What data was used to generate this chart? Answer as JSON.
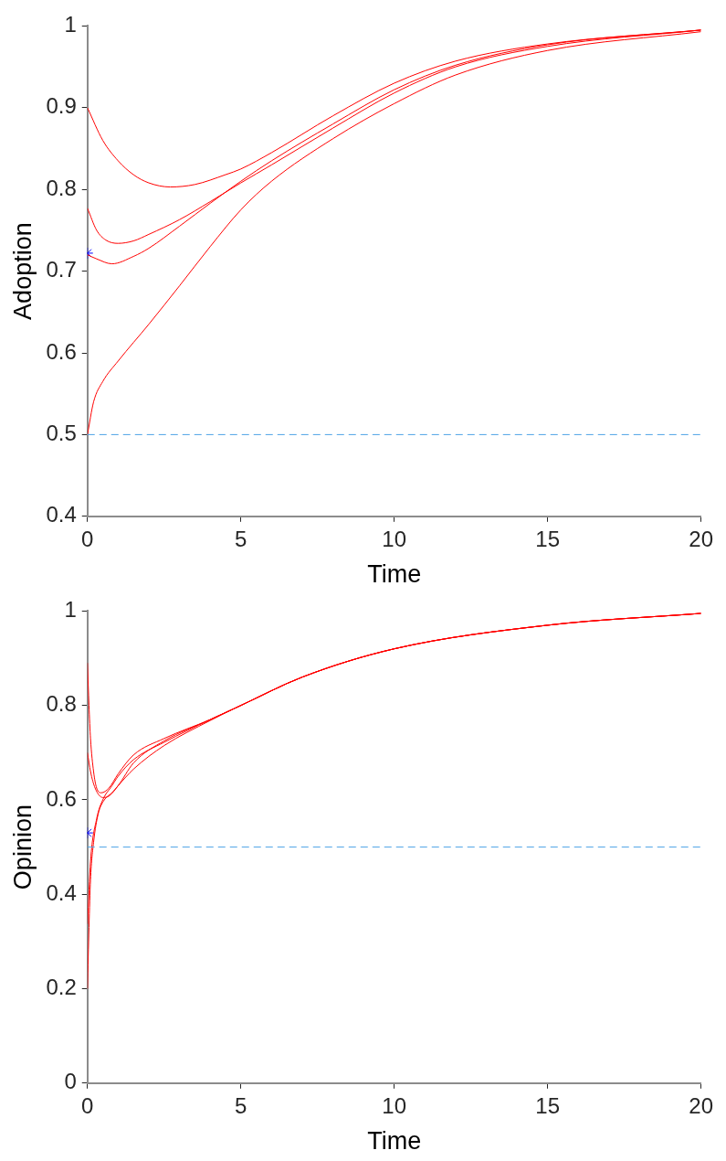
{
  "chart_data": [
    {
      "type": "line",
      "xlabel": "Time",
      "ylabel": "Adoption",
      "xlim": [
        0,
        20
      ],
      "ylim": [
        0.4,
        1
      ],
      "xticks": [
        0,
        5,
        10,
        15,
        20
      ],
      "yticks": [
        0.4,
        0.5,
        0.6,
        0.7,
        0.8,
        0.9,
        1
      ],
      "grid": false,
      "legend": false,
      "line_style": "solid",
      "marker": "none",
      "ref_lines": [
        {
          "axis": "y",
          "value": 0.5,
          "color": "#4da3e6",
          "line_style": "dashed"
        }
      ],
      "series": [
        {
          "type": "line",
          "color": "#ff0000",
          "x": [
            0,
            0.5,
            1,
            1.5,
            2,
            2.7,
            3.5,
            4.5,
            5,
            6,
            8,
            10,
            12,
            15,
            20
          ],
          "values": [
            0.9,
            0.86,
            0.835,
            0.818,
            0.808,
            0.803,
            0.806,
            0.818,
            0.825,
            0.845,
            0.89,
            0.93,
            0.957,
            0.978,
            0.995
          ]
        },
        {
          "type": "line",
          "color": "#ff0000",
          "x": [
            0,
            0.3,
            0.6,
            1,
            1.5,
            2,
            3,
            4,
            5,
            6,
            8,
            10,
            12,
            15,
            20
          ],
          "values": [
            0.777,
            0.75,
            0.738,
            0.734,
            0.737,
            0.745,
            0.763,
            0.785,
            0.808,
            0.83,
            0.875,
            0.918,
            0.95,
            0.975,
            0.995
          ]
        },
        {
          "type": "line",
          "color": "#ff0000",
          "x": [
            0,
            0.3,
            0.8,
            1.5,
            2,
            3,
            4,
            5,
            6,
            8,
            10,
            12,
            15,
            20
          ],
          "values": [
            0.72,
            0.715,
            0.709,
            0.718,
            0.728,
            0.755,
            0.783,
            0.81,
            0.835,
            0.88,
            0.922,
            0.952,
            0.977,
            0.995
          ]
        },
        {
          "type": "line",
          "color": "#ff0000",
          "x": [
            0,
            0.2,
            0.5,
            1,
            2,
            3,
            4,
            5,
            6,
            8,
            10,
            12,
            15,
            20
          ],
          "values": [
            0.5,
            0.54,
            0.565,
            0.59,
            0.635,
            0.682,
            0.73,
            0.775,
            0.81,
            0.862,
            0.905,
            0.94,
            0.97,
            0.993
          ]
        },
        {
          "type": "scatter",
          "color": "#0000ff",
          "marker": "cross",
          "x": [
            0
          ],
          "values": [
            0.722
          ]
        }
      ]
    },
    {
      "type": "line",
      "xlabel": "Time",
      "ylabel": "Opinion",
      "xlim": [
        0,
        20
      ],
      "ylim": [
        0,
        1
      ],
      "xticks": [
        0,
        5,
        10,
        15,
        20
      ],
      "yticks": [
        0,
        0.2,
        0.4,
        0.6,
        0.8,
        1
      ],
      "grid": false,
      "legend": false,
      "line_style": "solid",
      "marker": "none",
      "ref_lines": [
        {
          "axis": "y",
          "value": 0.5,
          "color": "#4da3e6",
          "line_style": "dashed"
        }
      ],
      "series": [
        {
          "type": "line",
          "color": "#ff0000",
          "x": [
            0,
            0.05,
            0.1,
            0.2,
            0.3,
            0.45,
            0.7,
            1,
            1.5,
            2.5,
            4,
            5,
            7,
            10,
            15,
            20
          ],
          "values": [
            0.89,
            0.8,
            0.73,
            0.66,
            0.625,
            0.615,
            0.625,
            0.655,
            0.695,
            0.73,
            0.77,
            0.8,
            0.86,
            0.92,
            0.97,
            0.995
          ]
        },
        {
          "type": "line",
          "color": "#ff0000",
          "x": [
            0,
            0.1,
            0.25,
            0.5,
            0.7,
            1,
            1.5,
            2.5,
            4,
            5,
            7,
            10,
            15,
            20
          ],
          "values": [
            0.7,
            0.66,
            0.625,
            0.605,
            0.608,
            0.63,
            0.678,
            0.725,
            0.77,
            0.8,
            0.86,
            0.92,
            0.97,
            0.995
          ]
        },
        {
          "type": "line",
          "color": "#ff0000",
          "x": [
            0,
            0.1,
            0.3,
            0.5,
            0.8,
            1,
            1.5,
            2.5,
            4,
            5,
            7,
            10,
            15,
            20
          ],
          "values": [
            0.337,
            0.47,
            0.56,
            0.6,
            0.63,
            0.65,
            0.685,
            0.722,
            0.77,
            0.8,
            0.86,
            0.92,
            0.97,
            0.995
          ]
        },
        {
          "type": "line",
          "color": "#ff0000",
          "x": [
            0,
            0.05,
            0.1,
            0.2,
            0.35,
            0.55,
            0.8,
            1,
            1.5,
            2.5,
            4,
            5,
            7,
            10,
            15,
            20
          ],
          "values": [
            0.2,
            0.33,
            0.43,
            0.51,
            0.57,
            0.6,
            0.615,
            0.63,
            0.665,
            0.715,
            0.768,
            0.8,
            0.86,
            0.92,
            0.97,
            0.995
          ]
        },
        {
          "type": "scatter",
          "color": "#0000ff",
          "marker": "cross",
          "x": [
            0
          ],
          "values": [
            0.53
          ]
        }
      ]
    }
  ]
}
